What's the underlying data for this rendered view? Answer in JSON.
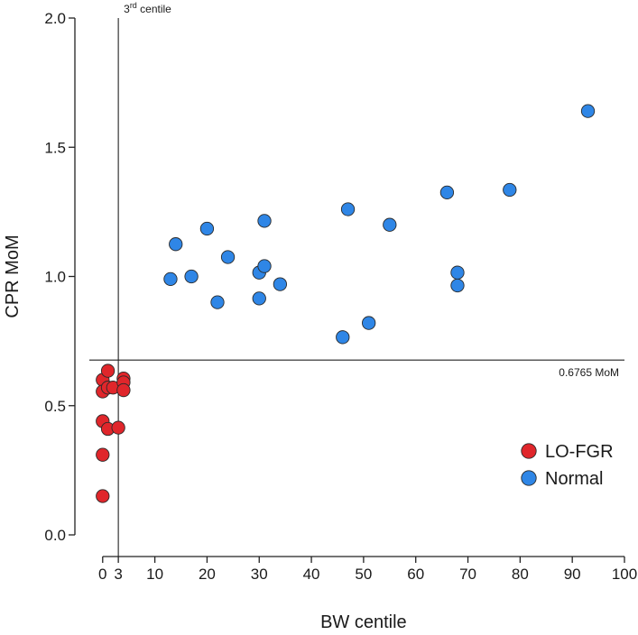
{
  "chart_data": {
    "type": "scatter",
    "title": "",
    "xlabel": "BW centile",
    "ylabel": "CPR MoM",
    "xlim": [
      -1,
      100
    ],
    "ylim": [
      0,
      2.0
    ],
    "x_ticks": [
      0,
      3,
      10,
      20,
      30,
      40,
      50,
      60,
      70,
      80,
      90,
      100
    ],
    "x_tick_labels": [
      "0",
      "3",
      "10",
      "20",
      "30",
      "40",
      "50",
      "60",
      "70",
      "80",
      "90",
      "100"
    ],
    "y_ticks": [
      0,
      0.5,
      1.0,
      1.5,
      2.0
    ],
    "y_tick_labels": [
      "0.0",
      "0.5",
      "1.0",
      "1.5",
      "2.0"
    ],
    "grid": false,
    "legend_position": "bottom-right",
    "reference_lines": {
      "vertical": {
        "x": 3,
        "label_base": "3",
        "label_sup": "rd",
        "label_rest": " centile"
      },
      "horizontal": {
        "y": 0.6765,
        "label": "0.6765 MoM"
      }
    },
    "series": [
      {
        "name": "LO-FGR",
        "color": "#e0262b",
        "points": [
          {
            "x": 0,
            "y": 0.6
          },
          {
            "x": 0,
            "y": 0.555
          },
          {
            "x": 1,
            "y": 0.635
          },
          {
            "x": 1,
            "y": 0.57
          },
          {
            "x": 2,
            "y": 0.57
          },
          {
            "x": 4,
            "y": 0.605
          },
          {
            "x": 4,
            "y": 0.59
          },
          {
            "x": 4,
            "y": 0.56
          },
          {
            "x": 0,
            "y": 0.44
          },
          {
            "x": 1,
            "y": 0.41
          },
          {
            "x": 3,
            "y": 0.415
          },
          {
            "x": 0,
            "y": 0.31
          },
          {
            "x": 0,
            "y": 0.15
          }
        ]
      },
      {
        "name": "Normal",
        "color": "#2f86e6",
        "points": [
          {
            "x": 13,
            "y": 0.99
          },
          {
            "x": 14,
            "y": 1.125
          },
          {
            "x": 17,
            "y": 1.0
          },
          {
            "x": 20,
            "y": 1.185
          },
          {
            "x": 22,
            "y": 0.9
          },
          {
            "x": 24,
            "y": 1.075
          },
          {
            "x": 30,
            "y": 1.015
          },
          {
            "x": 30,
            "y": 0.915
          },
          {
            "x": 31,
            "y": 1.215
          },
          {
            "x": 31,
            "y": 1.04
          },
          {
            "x": 34,
            "y": 0.97
          },
          {
            "x": 46,
            "y": 0.765
          },
          {
            "x": 47,
            "y": 1.26
          },
          {
            "x": 51,
            "y": 0.82
          },
          {
            "x": 55,
            "y": 1.2
          },
          {
            "x": 66,
            "y": 1.325
          },
          {
            "x": 68,
            "y": 1.015
          },
          {
            "x": 68,
            "y": 0.965
          },
          {
            "x": 78,
            "y": 1.335
          },
          {
            "x": 93,
            "y": 1.64
          }
        ]
      }
    ]
  }
}
